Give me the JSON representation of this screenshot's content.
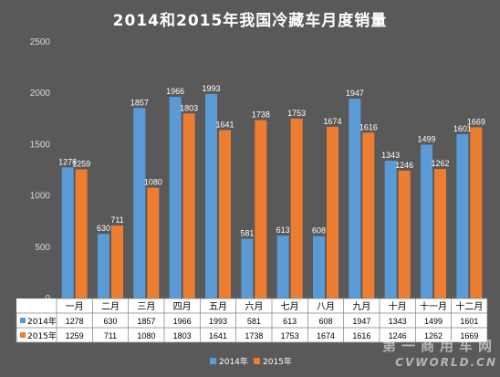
{
  "chart_data": {
    "type": "bar",
    "title": "2014和2015年我国冷藏车月度销量",
    "categories": [
      "一月",
      "二月",
      "三月",
      "四月",
      "五月",
      "六月",
      "七月",
      "八月",
      "九月",
      "十月",
      "十一月",
      "十二月"
    ],
    "series": [
      {
        "name": "2014年",
        "color": "#5b9bd5",
        "values": [
          1278,
          630,
          1857,
          1966,
          1993,
          581,
          613,
          608,
          1947,
          1343,
          1499,
          1601
        ]
      },
      {
        "name": "2015年",
        "color": "#ed7d31",
        "values": [
          1259,
          711,
          1080,
          1803,
          1641,
          1738,
          1753,
          1674,
          1616,
          1246,
          1262,
          1669
        ]
      }
    ],
    "ylim": [
      0,
      2500
    ],
    "yticks": [
      0,
      500,
      1000,
      1500,
      2000,
      2500
    ],
    "data_table": true,
    "legend_position": "bottom",
    "grid": false
  },
  "watermark": {
    "cn": "第一商用车网",
    "en": "CVWORLD.CN"
  },
  "colors": {
    "background": "#595959",
    "table_background": "#ffffff"
  }
}
